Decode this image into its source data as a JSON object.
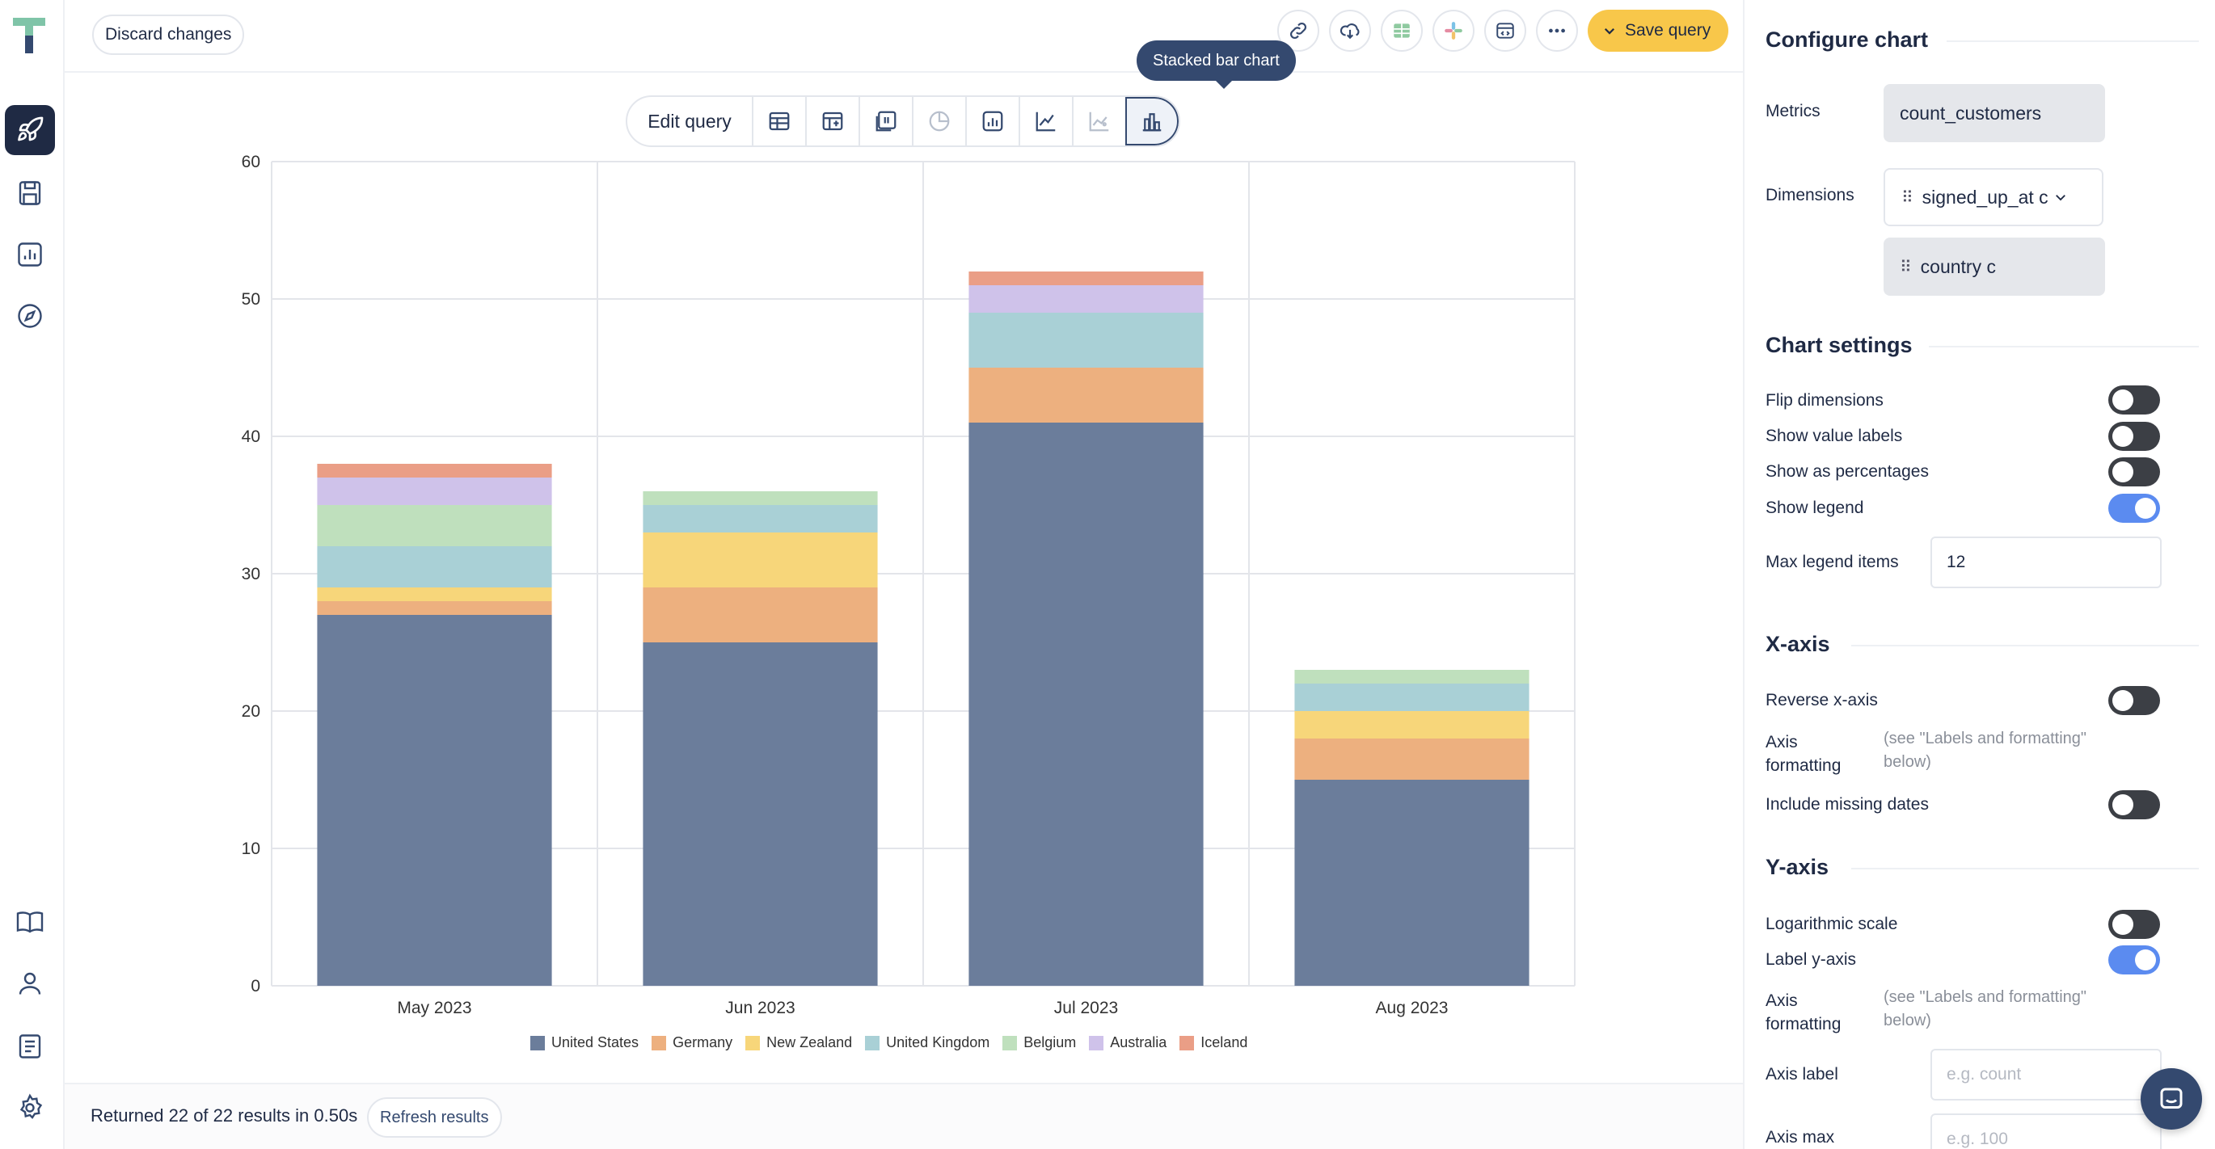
{
  "topbar": {
    "discard_label": "Discard changes",
    "save_label": "Save query",
    "tooltip": "Stacked bar chart",
    "edit_query_label": "Edit query"
  },
  "footer": {
    "status": "Returned 22 of 22 results in 0.50s",
    "refresh_label": "Refresh results"
  },
  "panel": {
    "configure_title": "Configure chart",
    "metrics_label": "Metrics",
    "metric_value": "count_customers",
    "dimensions_label": "Dimensions",
    "dimension_1": "signed_up_at c",
    "dimension_2": "country c",
    "chart_settings_title": "Chart settings",
    "settings": [
      {
        "label": "Flip dimensions",
        "on": false
      },
      {
        "label": "Show value labels",
        "on": false
      },
      {
        "label": "Show as percentages",
        "on": false
      },
      {
        "label": "Show legend",
        "on": true
      }
    ],
    "max_legend_label": "Max legend items",
    "max_legend_value": "12",
    "xaxis_title": "X-axis",
    "reverse_x_label": "Reverse x-axis",
    "axis_formatting_label": "Axis formatting",
    "axis_formatting_hint": "(see \"Labels and formatting\" below)",
    "include_missing_label": "Include missing dates",
    "yaxis_title": "Y-axis",
    "log_scale_label": "Logarithmic scale",
    "label_y_label": "Label y-axis",
    "axis_label_label": "Axis label",
    "axis_label_placeholder": "e.g. count",
    "axis_max_label": "Axis max",
    "axis_max_placeholder": "e.g. 100"
  },
  "colors": {
    "United States": "#6b7d9b",
    "Germany": "#edb07f",
    "New Zealand": "#f7d67a",
    "United Kingdom": "#a9d0d6",
    "Belgium": "#bfe0bd",
    "Australia": "#cfc2ea",
    "Iceland": "#ea9e86"
  },
  "chart_data": {
    "type": "bar",
    "stacked": true,
    "categories": [
      "May 2023",
      "Jun 2023",
      "Jul 2023",
      "Aug 2023"
    ],
    "ylim": [
      0,
      60
    ],
    "yticks": [
      0,
      10,
      20,
      30,
      40,
      50,
      60
    ],
    "legend_position": "bottom",
    "grid": true,
    "series": [
      {
        "name": "United States",
        "values": [
          27,
          25,
          41,
          15
        ]
      },
      {
        "name": "Germany",
        "values": [
          1,
          4,
          4,
          3
        ]
      },
      {
        "name": "New Zealand",
        "values": [
          1,
          4,
          0,
          2
        ]
      },
      {
        "name": "United Kingdom",
        "values": [
          3,
          2,
          4,
          2
        ]
      },
      {
        "name": "Belgium",
        "values": [
          3,
          1,
          0,
          1
        ]
      },
      {
        "name": "Australia",
        "values": [
          2,
          0,
          2,
          0
        ]
      },
      {
        "name": "Iceland",
        "values": [
          1,
          0,
          1,
          0
        ]
      }
    ]
  }
}
